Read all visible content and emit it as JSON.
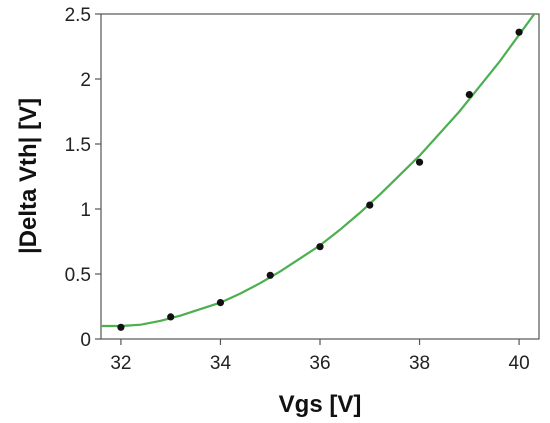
{
  "chart_data": {
    "type": "scatter",
    "xlabel": "Vgs [V]",
    "ylabel": "|Delta Vth| [V]",
    "xlim": [
      31.6,
      40.4
    ],
    "ylim": [
      0,
      2.5
    ],
    "xticks": [
      32,
      34,
      36,
      38,
      40
    ],
    "yticks": [
      0,
      0.5,
      1,
      1.5,
      2,
      2.5
    ],
    "xtick_labels": [
      "32",
      "34",
      "36",
      "38",
      "40"
    ],
    "ytick_labels": [
      "0",
      "0.5",
      "1",
      "1.5",
      "2",
      "2.5"
    ],
    "grid": false,
    "series": [
      {
        "type": "scatter",
        "x": [
          32,
          33,
          34,
          35,
          36,
          37,
          38,
          39,
          40
        ],
        "y": [
          0.09,
          0.17,
          0.28,
          0.49,
          0.71,
          1.03,
          1.36,
          1.88,
          2.36
        ]
      },
      {
        "type": "line",
        "x": [
          31.6,
          32.0,
          32.4,
          32.8,
          33.2,
          33.6,
          34.0,
          34.4,
          34.8,
          35.2,
          35.6,
          36.0,
          36.4,
          36.8,
          37.2,
          37.6,
          38.0,
          38.4,
          38.8,
          39.2,
          39.6,
          40.0,
          40.4
        ],
        "y": [
          0.1,
          0.1,
          0.11,
          0.14,
          0.18,
          0.23,
          0.28,
          0.35,
          0.43,
          0.52,
          0.62,
          0.72,
          0.84,
          0.97,
          1.11,
          1.26,
          1.41,
          1.58,
          1.75,
          1.94,
          2.13,
          2.34,
          2.55
        ]
      }
    ],
    "colors": {
      "fit": "#4caf50",
      "points": "#111111"
    }
  }
}
